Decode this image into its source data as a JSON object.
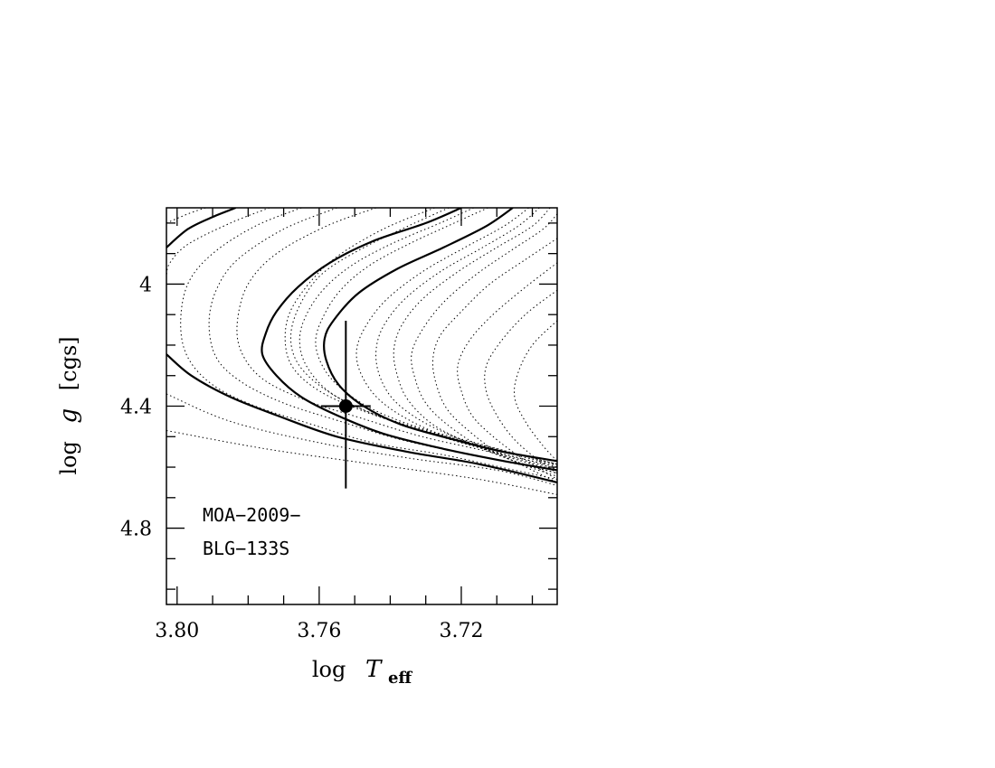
{
  "chart_data": {
    "type": "line",
    "title": "",
    "xlabel": {
      "main": "log",
      "var": "T",
      "sub": "eff"
    },
    "ylabel": {
      "main": "log",
      "var": "g",
      "unit": "[cgs]"
    },
    "x_reversed": true,
    "xlim": [
      3.803,
      3.693
    ],
    "ylim": [
      3.75,
      5.05
    ],
    "x_ticks": [
      {
        "value": 3.8,
        "label": "3.80"
      },
      {
        "value": 3.76,
        "label": "3.76"
      },
      {
        "value": 3.72,
        "label": "3.72"
      }
    ],
    "y_ticks": [
      {
        "value": 4.0,
        "label": "4"
      },
      {
        "value": 4.4,
        "label": "4.4"
      },
      {
        "value": 4.8,
        "label": "4.8"
      }
    ],
    "x_minor_step": 0.01,
    "y_minor_step": 0.1,
    "annotation": [
      "MOA−2009−",
      "BLG−133S"
    ],
    "point": {
      "x": 3.7525,
      "y": 4.4,
      "xerr": 0.007,
      "yerr_low": 0.27,
      "yerr_high": 0.28
    },
    "solid_isochrones": [
      {
        "values": [
          [
            3.7835,
            3.75
          ],
          [
            3.79,
            3.78
          ],
          [
            3.797,
            3.82
          ],
          [
            3.803,
            3.88
          ]
        ]
      },
      {
        "values": [
          [
            3.803,
            4.23
          ],
          [
            3.796,
            4.3
          ],
          [
            3.785,
            4.37
          ],
          [
            3.772,
            4.43
          ],
          [
            3.755,
            4.5
          ],
          [
            3.735,
            4.55
          ],
          [
            3.715,
            4.59
          ],
          [
            3.693,
            4.65
          ]
        ]
      },
      {
        "values": [
          [
            3.72,
            3.75
          ],
          [
            3.73,
            3.8
          ],
          [
            3.745,
            3.86
          ],
          [
            3.757,
            3.93
          ],
          [
            3.766,
            4.01
          ],
          [
            3.772,
            4.09
          ],
          [
            3.775,
            4.16
          ],
          [
            3.776,
            4.23
          ],
          [
            3.772,
            4.3
          ],
          [
            3.765,
            4.37
          ],
          [
            3.755,
            4.43
          ],
          [
            3.742,
            4.49
          ],
          [
            3.725,
            4.54
          ],
          [
            3.708,
            4.58
          ],
          [
            3.693,
            4.61
          ]
        ]
      },
      {
        "values": [
          [
            3.7055,
            3.75
          ],
          [
            3.713,
            3.81
          ],
          [
            3.725,
            3.88
          ],
          [
            3.738,
            3.95
          ],
          [
            3.749,
            4.03
          ],
          [
            3.756,
            4.12
          ],
          [
            3.7585,
            4.18
          ],
          [
            3.758,
            4.25
          ],
          [
            3.7545,
            4.33
          ],
          [
            3.7475,
            4.4
          ],
          [
            3.737,
            4.46
          ],
          [
            3.722,
            4.51
          ],
          [
            3.708,
            4.55
          ],
          [
            3.693,
            4.58
          ]
        ]
      }
    ],
    "dotted_isochrones": [
      {
        "values": [
          [
            3.792,
            3.75
          ],
          [
            3.797,
            3.77
          ],
          [
            3.803,
            3.8
          ]
        ]
      },
      {
        "values": [
          [
            3.803,
            4.48
          ],
          [
            3.775,
            4.54
          ],
          [
            3.745,
            4.59
          ],
          [
            3.715,
            4.64
          ],
          [
            3.693,
            4.69
          ]
        ]
      },
      {
        "values": [
          [
            3.803,
            4.36
          ],
          [
            3.785,
            4.45
          ],
          [
            3.76,
            4.52
          ],
          [
            3.735,
            4.57
          ],
          [
            3.71,
            4.61
          ],
          [
            3.693,
            4.66
          ]
        ]
      },
      {
        "values": [
          [
            3.774,
            3.75
          ],
          [
            3.785,
            3.8
          ],
          [
            3.797,
            3.87
          ],
          [
            3.802,
            3.93
          ],
          [
            3.803,
            3.97
          ]
        ]
      },
      {
        "values": [
          [
            3.765,
            3.75
          ],
          [
            3.778,
            3.81
          ],
          [
            3.79,
            3.9
          ],
          [
            3.797,
            4.0
          ],
          [
            3.799,
            4.13
          ],
          [
            3.797,
            4.24
          ],
          [
            3.79,
            4.33
          ],
          [
            3.778,
            4.4
          ],
          [
            3.762,
            4.46
          ],
          [
            3.745,
            4.52
          ],
          [
            3.725,
            4.56
          ],
          [
            3.705,
            4.61
          ],
          [
            3.693,
            4.64
          ]
        ]
      },
      {
        "values": [
          [
            3.755,
            3.75
          ],
          [
            3.77,
            3.82
          ],
          [
            3.783,
            3.92
          ],
          [
            3.789,
            4.02
          ],
          [
            3.791,
            4.13
          ],
          [
            3.789,
            4.24
          ],
          [
            3.782,
            4.32
          ],
          [
            3.77,
            4.39
          ],
          [
            3.754,
            4.45
          ],
          [
            3.737,
            4.51
          ],
          [
            3.717,
            4.56
          ],
          [
            3.7,
            4.6
          ],
          [
            3.693,
            4.62
          ]
        ]
      },
      {
        "values": [
          [
            3.744,
            3.75
          ],
          [
            3.758,
            3.81
          ],
          [
            3.772,
            3.9
          ],
          [
            3.78,
            4.0
          ],
          [
            3.783,
            4.12
          ],
          [
            3.782,
            4.22
          ],
          [
            3.776,
            4.31
          ],
          [
            3.764,
            4.38
          ],
          [
            3.748,
            4.44
          ],
          [
            3.731,
            4.5
          ],
          [
            3.712,
            4.55
          ],
          [
            3.695,
            4.6
          ],
          [
            3.693,
            4.61
          ]
        ]
      },
      {
        "values": [
          [
            3.7275,
            3.75
          ],
          [
            3.742,
            3.82
          ],
          [
            3.755,
            3.91
          ],
          [
            3.763,
            4.0
          ],
          [
            3.7685,
            4.1
          ],
          [
            3.7695,
            4.2
          ],
          [
            3.767,
            4.28
          ],
          [
            3.76,
            4.35
          ],
          [
            3.749,
            4.41
          ],
          [
            3.734,
            4.47
          ],
          [
            3.717,
            4.53
          ],
          [
            3.7,
            4.58
          ],
          [
            3.693,
            4.59
          ]
        ]
      },
      {
        "values": [
          [
            3.7235,
            3.75
          ],
          [
            3.735,
            3.81
          ],
          [
            3.749,
            3.89
          ],
          [
            3.7595,
            3.97
          ],
          [
            3.7655,
            4.07
          ],
          [
            3.768,
            4.17
          ],
          [
            3.766,
            4.26
          ],
          [
            3.759,
            4.34
          ],
          [
            3.748,
            4.41
          ],
          [
            3.733,
            4.47
          ],
          [
            3.715,
            4.53
          ],
          [
            3.698,
            4.58
          ],
          [
            3.693,
            4.595
          ]
        ]
      },
      {
        "values": [
          [
            3.7165,
            3.75
          ],
          [
            3.726,
            3.8
          ],
          [
            3.74,
            3.87
          ],
          [
            3.751,
            3.94
          ],
          [
            3.759,
            4.02
          ],
          [
            3.764,
            4.11
          ],
          [
            3.7655,
            4.19
          ],
          [
            3.7635,
            4.27
          ],
          [
            3.7575,
            4.35
          ],
          [
            3.748,
            4.41
          ],
          [
            3.734,
            4.47
          ],
          [
            3.717,
            4.52
          ],
          [
            3.7,
            4.57
          ],
          [
            3.693,
            4.59
          ]
        ]
      },
      {
        "values": [
          [
            3.7125,
            3.75
          ],
          [
            3.722,
            3.8
          ],
          [
            3.735,
            3.87
          ],
          [
            3.746,
            3.94
          ],
          [
            3.754,
            4.02
          ],
          [
            3.759,
            4.11
          ],
          [
            3.761,
            4.19
          ],
          [
            3.759,
            4.27
          ],
          [
            3.754,
            4.34
          ],
          [
            3.745,
            4.41
          ],
          [
            3.732,
            4.47
          ],
          [
            3.716,
            4.52
          ],
          [
            3.7,
            4.57
          ],
          [
            3.693,
            4.59
          ]
        ]
      },
      {
        "values": [
          [
            3.701,
            3.75
          ],
          [
            3.708,
            3.81
          ],
          [
            3.719,
            3.88
          ],
          [
            3.731,
            3.96
          ],
          [
            3.741,
            4.05
          ],
          [
            3.747,
            4.14
          ],
          [
            3.7495,
            4.22
          ],
          [
            3.748,
            4.3
          ],
          [
            3.743,
            4.38
          ],
          [
            3.734,
            4.45
          ],
          [
            3.722,
            4.51
          ],
          [
            3.707,
            4.56
          ],
          [
            3.693,
            4.6
          ]
        ]
      },
      {
        "values": [
          [
            3.698,
            3.75
          ],
          [
            3.704,
            3.81
          ],
          [
            3.714,
            3.88
          ],
          [
            3.726,
            3.96
          ],
          [
            3.736,
            4.05
          ],
          [
            3.742,
            4.14
          ],
          [
            3.744,
            4.22
          ],
          [
            3.743,
            4.3
          ],
          [
            3.739,
            4.38
          ],
          [
            3.731,
            4.45
          ],
          [
            3.72,
            4.51
          ],
          [
            3.706,
            4.57
          ],
          [
            3.693,
            4.61
          ]
        ]
      },
      {
        "values": [
          [
            3.695,
            3.75
          ],
          [
            3.7,
            3.81
          ],
          [
            3.71,
            3.88
          ],
          [
            3.721,
            3.96
          ],
          [
            3.731,
            4.05
          ],
          [
            3.737,
            4.14
          ],
          [
            3.739,
            4.22
          ],
          [
            3.738,
            4.3
          ],
          [
            3.735,
            4.38
          ],
          [
            3.728,
            4.46
          ],
          [
            3.718,
            4.52
          ],
          [
            3.705,
            4.58
          ],
          [
            3.693,
            4.62
          ]
        ]
      },
      {
        "values": [
          [
            3.693,
            3.77
          ],
          [
            3.697,
            3.82
          ],
          [
            3.706,
            3.89
          ],
          [
            3.716,
            3.97
          ],
          [
            3.725,
            4.06
          ],
          [
            3.731,
            4.15
          ],
          [
            3.734,
            4.23
          ],
          [
            3.733,
            4.31
          ],
          [
            3.73,
            4.39
          ],
          [
            3.724,
            4.46
          ],
          [
            3.715,
            4.53
          ],
          [
            3.703,
            4.59
          ],
          [
            3.693,
            4.63
          ]
        ]
      },
      {
        "values": [
          [
            3.693,
            3.85
          ],
          [
            3.702,
            3.92
          ],
          [
            3.712,
            4.0
          ],
          [
            3.72,
            4.09
          ],
          [
            3.726,
            4.17
          ],
          [
            3.728,
            4.25
          ],
          [
            3.727,
            4.33
          ],
          [
            3.724,
            4.41
          ],
          [
            3.718,
            4.48
          ],
          [
            3.71,
            4.55
          ],
          [
            3.7,
            4.61
          ],
          [
            3.693,
            4.65
          ]
        ]
      },
      {
        "values": [
          [
            3.693,
            3.93
          ],
          [
            3.703,
            4.02
          ],
          [
            3.712,
            4.11
          ],
          [
            3.718,
            4.19
          ],
          [
            3.721,
            4.27
          ],
          [
            3.72,
            4.35
          ],
          [
            3.717,
            4.43
          ],
          [
            3.711,
            4.5
          ],
          [
            3.703,
            4.57
          ],
          [
            3.693,
            4.64
          ]
        ]
      },
      {
        "values": [
          [
            3.693,
            4.02
          ],
          [
            3.702,
            4.1
          ],
          [
            3.709,
            4.19
          ],
          [
            3.713,
            4.27
          ],
          [
            3.713,
            4.35
          ],
          [
            3.71,
            4.43
          ],
          [
            3.705,
            4.51
          ],
          [
            3.698,
            4.58
          ],
          [
            3.693,
            4.62
          ]
        ]
      },
      {
        "values": [
          [
            3.693,
            4.12
          ],
          [
            3.7,
            4.2
          ],
          [
            3.704,
            4.29
          ],
          [
            3.705,
            4.37
          ],
          [
            3.702,
            4.45
          ],
          [
            3.697,
            4.53
          ],
          [
            3.693,
            4.58
          ]
        ]
      }
    ]
  }
}
